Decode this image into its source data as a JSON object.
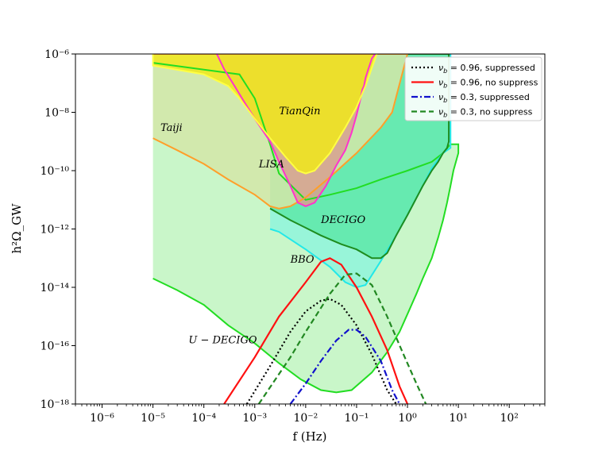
{
  "chart_data": {
    "type": "line",
    "xlabel": "f (Hz)",
    "ylabel": "h²Ω_GW",
    "xscale": "log",
    "yscale": "log",
    "xlim": [
      3e-07,
      500
    ],
    "ylim": [
      1e-18,
      1e-06
    ],
    "x_ticks": [
      {
        "value": 1e-06,
        "label": "10⁻⁶"
      },
      {
        "value": 1e-05,
        "label": "10⁻⁵"
      },
      {
        "value": 0.0001,
        "label": "10⁻⁴"
      },
      {
        "value": 0.001,
        "label": "10⁻³"
      },
      {
        "value": 0.01,
        "label": "10⁻²"
      },
      {
        "value": 0.1,
        "label": "10⁻¹"
      },
      {
        "value": 1,
        "label": "10⁰"
      },
      {
        "value": 10,
        "label": "10¹"
      },
      {
        "value": 100,
        "label": "10²"
      }
    ],
    "y_ticks": [
      {
        "value": 1e-18,
        "label": "10⁻¹⁸"
      },
      {
        "value": 1e-16,
        "label": "10⁻¹⁶"
      },
      {
        "value": 1e-14,
        "label": "10⁻¹⁴"
      },
      {
        "value": 1e-12,
        "label": "10⁻¹²"
      },
      {
        "value": 1e-10,
        "label": "10⁻¹⁰"
      },
      {
        "value": 1e-08,
        "label": "10⁻⁸"
      },
      {
        "value": 1e-06,
        "label": "10⁻⁶"
      }
    ],
    "grid": false,
    "legend_position": "top-right",
    "sensitivity_regions": [
      {
        "label": "U − DECIGO",
        "fill": "#bff5bf",
        "stroke": "#22dd22",
        "label_at": [
          5e-05,
          1.2e-16
        ],
        "points": [
          [
            1e-05,
            2e-14
          ],
          [
            3e-05,
            8e-15
          ],
          [
            0.0001,
            2.5e-15
          ],
          [
            0.0003,
            5e-16
          ],
          [
            0.001,
            1.2e-16
          ],
          [
            0.003,
            2.5e-17
          ],
          [
            0.008,
            7e-18
          ],
          [
            0.02,
            3e-18
          ],
          [
            0.04,
            2.5e-18
          ],
          [
            0.08,
            3e-18
          ],
          [
            0.2,
            1.2e-17
          ],
          [
            0.4,
            6e-17
          ],
          [
            0.7,
            3e-16
          ],
          [
            1,
            1.2e-15
          ],
          [
            1.5,
            6e-15
          ],
          [
            2,
            2e-14
          ],
          [
            3,
            1e-13
          ],
          [
            4,
            5e-13
          ],
          [
            5,
            2e-12
          ],
          [
            6,
            8e-12
          ],
          [
            7,
            3e-11
          ],
          [
            8,
            1e-10
          ],
          [
            10,
            4e-10
          ],
          [
            10,
            8e-10
          ],
          [
            7,
            8e-10
          ],
          [
            5,
            4e-10
          ],
          [
            3,
            2e-10
          ],
          [
            1,
            1e-10
          ],
          [
            0.3,
            5e-11
          ],
          [
            0.1,
            2.5e-11
          ],
          [
            0.03,
            1.5e-11
          ],
          [
            0.01,
            1e-11
          ],
          [
            0.003,
            8e-11
          ],
          [
            0.002,
            8e-10
          ],
          [
            0.001,
            3e-08
          ],
          [
            0.0005,
            2e-07
          ],
          [
            1e-05,
            5e-07
          ]
        ]
      },
      {
        "label": "BBO",
        "fill": "#8ff5dc",
        "stroke": "#22e8e8",
        "label_at": [
          0.005,
          7e-14
        ],
        "points": [
          [
            0.002,
            1e-12
          ],
          [
            0.003,
            8e-13
          ],
          [
            0.01,
            2e-13
          ],
          [
            0.03,
            5e-14
          ],
          [
            0.06,
            1.5e-14
          ],
          [
            0.1,
            1e-14
          ],
          [
            0.15,
            1.2e-14
          ],
          [
            0.3,
            8e-14
          ],
          [
            0.6,
            6e-13
          ],
          [
            1,
            3e-12
          ],
          [
            2,
            3e-11
          ],
          [
            3,
            1.2e-10
          ],
          [
            5,
            4e-10
          ],
          [
            7,
            6e-10
          ],
          [
            7,
            1e-06
          ],
          [
            0.002,
            1e-06
          ]
        ]
      },
      {
        "label": "DECIGO",
        "fill": "#5de8a8",
        "stroke": "#1e8c1e",
        "label_at": [
          0.02,
          1.6e-12
        ],
        "points": [
          [
            0.002,
            5e-12
          ],
          [
            0.005,
            2e-12
          ],
          [
            0.01,
            1.1e-12
          ],
          [
            0.02,
            6e-13
          ],
          [
            0.05,
            3e-13
          ],
          [
            0.1,
            2e-13
          ],
          [
            0.2,
            1e-13
          ],
          [
            0.3,
            1e-13
          ],
          [
            0.4,
            1.5e-13
          ],
          [
            0.6,
            6e-13
          ],
          [
            1,
            3e-12
          ],
          [
            2,
            3e-11
          ],
          [
            3,
            1e-10
          ],
          [
            4,
            2e-10
          ],
          [
            5,
            4e-10
          ],
          [
            6,
            6e-10
          ],
          [
            6.5,
            1e-09
          ],
          [
            6.5,
            1e-06
          ],
          [
            0.002,
            1e-06
          ]
        ]
      },
      {
        "label": "Taiji",
        "fill": "#d4e6a8",
        "stroke": "#ff9f2a",
        "label_at": [
          1.4e-05,
          2.3e-09
        ],
        "points": [
          [
            1e-05,
            1.3e-09
          ],
          [
            3e-05,
            5e-10
          ],
          [
            0.0001,
            1.7e-10
          ],
          [
            0.0003,
            5e-11
          ],
          [
            0.001,
            1.5e-11
          ],
          [
            0.002,
            6e-12
          ],
          [
            0.003,
            5e-12
          ],
          [
            0.005,
            6e-12
          ],
          [
            0.01,
            1.2e-11
          ],
          [
            0.03,
            6e-11
          ],
          [
            0.1,
            4e-10
          ],
          [
            0.3,
            3e-09
          ],
          [
            0.5,
            1e-08
          ],
          [
            1,
            1e-06
          ],
          [
            1e-05,
            1e-06
          ]
        ]
      },
      {
        "label": "LISA",
        "fill": "#d8a090",
        "stroke": "#ff33cc",
        "label_at": [
          0.0012,
          1.3e-10
        ],
        "points": [
          [
            0.00018,
            1e-06
          ],
          [
            0.00025,
            3e-07
          ],
          [
            0.0004,
            8e-08
          ],
          [
            0.0006,
            2.5e-08
          ],
          [
            0.001,
            6e-09
          ],
          [
            0.002,
            1e-09
          ],
          [
            0.003,
            2e-10
          ],
          [
            0.005,
            3e-11
          ],
          [
            0.007,
            8e-12
          ],
          [
            0.01,
            6e-12
          ],
          [
            0.015,
            8e-12
          ],
          [
            0.025,
            3e-11
          ],
          [
            0.04,
            1.5e-10
          ],
          [
            0.06,
            5e-10
          ],
          [
            0.08,
            2e-09
          ],
          [
            0.1,
            8e-09
          ],
          [
            0.12,
            3e-08
          ],
          [
            0.13,
            6e-08
          ],
          [
            0.14,
            8e-08
          ],
          [
            0.15,
            1.5e-07
          ],
          [
            0.17,
            3e-07
          ],
          [
            0.18,
            4e-07
          ],
          [
            0.2,
            7e-07
          ],
          [
            0.23,
            1e-06
          ]
        ]
      },
      {
        "label": "TianQin",
        "fill": "#f0e81a",
        "stroke": "#ffff44",
        "label_at": [
          0.003,
          8.5e-09
        ],
        "points": [
          [
            1e-05,
            1e-06
          ],
          [
            1e-05,
            4e-07
          ],
          [
            0.0001,
            2e-07
          ],
          [
            0.0003,
            8e-08
          ],
          [
            0.0005,
            3e-08
          ],
          [
            0.001,
            6e-09
          ],
          [
            0.002,
            1.3e-09
          ],
          [
            0.004,
            3e-10
          ],
          [
            0.007,
            1e-10
          ],
          [
            0.01,
            8e-11
          ],
          [
            0.015,
            1e-10
          ],
          [
            0.03,
            4e-10
          ],
          [
            0.06,
            3e-09
          ],
          [
            0.1,
            1.5e-08
          ],
          [
            0.15,
            8e-08
          ],
          [
            0.25,
            1e-06
          ]
        ]
      }
    ],
    "series": [
      {
        "name": "ν_b = 0.96, suppressed",
        "legend_main": "ν",
        "legend_sub": "b",
        "legend_rest": " = 0.96, suppressed",
        "color": "#000000",
        "dash": "dotted",
        "points": [
          [
            0.0007,
            1e-18
          ],
          [
            0.002,
            2e-17
          ],
          [
            0.005,
            3e-16
          ],
          [
            0.01,
            1.5e-15
          ],
          [
            0.02,
            3.5e-15
          ],
          [
            0.03,
            4e-15
          ],
          [
            0.05,
            2.5e-15
          ],
          [
            0.1,
            5e-16
          ],
          [
            0.2,
            5e-17
          ],
          [
            0.4,
            3e-18
          ],
          [
            0.6,
            1e-18
          ]
        ]
      },
      {
        "name": "ν_b = 0.96, no suppress",
        "legend_main": "ν",
        "legend_sub": "b",
        "legend_rest": " = 0.96, no suppress",
        "color": "#ff1111",
        "dash": "solid",
        "points": [
          [
            0.00025,
            1e-18
          ],
          [
            0.001,
            4e-17
          ],
          [
            0.003,
            1e-15
          ],
          [
            0.01,
            1.5e-14
          ],
          [
            0.02,
            7.5e-14
          ],
          [
            0.03,
            1e-13
          ],
          [
            0.05,
            6e-14
          ],
          [
            0.1,
            1e-14
          ],
          [
            0.2,
            1e-15
          ],
          [
            0.4,
            7e-17
          ],
          [
            0.7,
            4e-18
          ],
          [
            1,
            1e-18
          ]
        ]
      },
      {
        "name": "ν_b = 0.3, suppressed",
        "legend_main": "ν",
        "legend_sub": "b",
        "legend_rest": " = 0.3, suppressed",
        "color": "#1111cc",
        "dash": "dashdot",
        "points": [
          [
            0.005,
            1e-18
          ],
          [
            0.01,
            5e-18
          ],
          [
            0.02,
            3e-17
          ],
          [
            0.04,
            1.5e-16
          ],
          [
            0.07,
            3.5e-16
          ],
          [
            0.1,
            3.5e-16
          ],
          [
            0.15,
            2e-16
          ],
          [
            0.3,
            3e-17
          ],
          [
            0.5,
            3e-18
          ],
          [
            0.7,
            1e-18
          ]
        ]
      },
      {
        "name": "ν_b = 0.3, no suppress",
        "legend_main": "ν",
        "legend_sub": "b",
        "legend_rest": " = 0.3, no suppress",
        "color": "#228822",
        "dash": "dashed",
        "points": [
          [
            0.0012,
            1e-18
          ],
          [
            0.005,
            4e-17
          ],
          [
            0.01,
            3e-16
          ],
          [
            0.03,
            6e-15
          ],
          [
            0.06,
            2.7e-14
          ],
          [
            0.1,
            3e-14
          ],
          [
            0.2,
            1.2e-14
          ],
          [
            0.4,
            1e-15
          ],
          [
            0.8,
            6e-17
          ],
          [
            1.5,
            5e-18
          ],
          [
            2.3,
            1e-18
          ]
        ]
      }
    ]
  }
}
